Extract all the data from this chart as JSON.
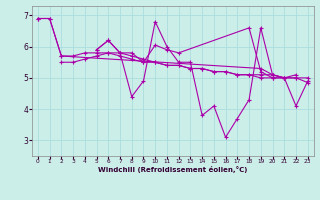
{
  "background_color": "#cceee8",
  "line_color": "#aa00aa",
  "grid_color": "#aadddd",
  "xlabel": "Windchill (Refroidissement éolien,°C)",
  "xlim": [
    -0.5,
    23.5
  ],
  "ylim": [
    2.5,
    7.3
  ],
  "yticks": [
    3,
    4,
    5,
    6,
    7
  ],
  "xticks": [
    0,
    1,
    2,
    3,
    4,
    5,
    6,
    7,
    8,
    9,
    10,
    11,
    12,
    13,
    14,
    15,
    16,
    17,
    18,
    19,
    20,
    21,
    22,
    23
  ],
  "series": [
    {
      "x": [
        0,
        1,
        2,
        3,
        4,
        5,
        6,
        7,
        8,
        9,
        10,
        11,
        12,
        13,
        14,
        15,
        16,
        17,
        18,
        19,
        20,
        21,
        22
      ],
      "y": [
        6.9,
        6.9,
        5.7,
        5.7,
        5.8,
        5.8,
        5.8,
        5.8,
        5.7,
        5.6,
        5.5,
        5.4,
        5.4,
        5.3,
        5.3,
        5.2,
        5.2,
        5.1,
        5.1,
        5.1,
        5.1,
        5.0,
        5.1
      ]
    },
    {
      "x": [
        2,
        3,
        4,
        5,
        6,
        7,
        8,
        9,
        10,
        11,
        12,
        13,
        14,
        15,
        16,
        17,
        18,
        19,
        20,
        21,
        22,
        23
      ],
      "y": [
        5.5,
        5.5,
        5.6,
        5.7,
        5.8,
        5.7,
        5.6,
        5.5,
        5.5,
        5.4,
        5.4,
        5.3,
        5.3,
        5.2,
        5.2,
        5.1,
        5.1,
        5.0,
        5.0,
        5.0,
        5.0,
        5.0
      ]
    },
    {
      "x": [
        5,
        6,
        7,
        8,
        9,
        10,
        11,
        12,
        13,
        14,
        15,
        16,
        17,
        18,
        19,
        20,
        21,
        22,
        23
      ],
      "y": [
        5.9,
        6.2,
        5.8,
        4.4,
        4.9,
        6.8,
        6.0,
        5.5,
        5.5,
        3.8,
        4.1,
        3.1,
        3.7,
        4.3,
        6.6,
        5.1,
        5.0,
        4.1,
        4.9
      ]
    },
    {
      "x": [
        5,
        6,
        7,
        8,
        9,
        10,
        11,
        12,
        18,
        19,
        20,
        21
      ],
      "y": [
        5.9,
        6.2,
        5.8,
        5.8,
        5.5,
        6.05,
        5.9,
        5.8,
        6.6,
        5.2,
        5.0,
        5.0
      ]
    },
    {
      "x": [
        0,
        1,
        2,
        19,
        20,
        21,
        22,
        23
      ],
      "y": [
        6.9,
        6.9,
        5.7,
        5.3,
        5.1,
        5.0,
        5.0,
        4.85
      ]
    }
  ]
}
